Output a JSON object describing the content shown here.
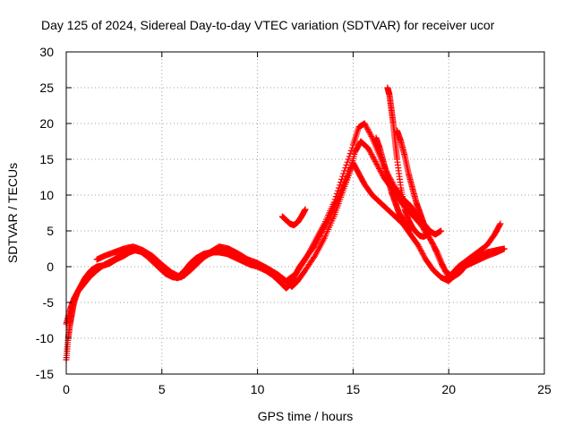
{
  "chart_data": {
    "type": "scatter",
    "title": "Day 125 of 2024, Sidereal Day-to-day VTEC variation (SDTVAR) for receiver ucor",
    "xlabel": "GPS time / hours",
    "ylabel": "SDTVAR / TECUs",
    "xlim": [
      0,
      25
    ],
    "ylim": [
      -15,
      30
    ],
    "x_ticks": [
      0,
      5,
      10,
      15,
      20,
      25
    ],
    "y_ticks": [
      -15,
      -10,
      -5,
      0,
      5,
      10,
      15,
      20,
      25,
      30
    ],
    "grid": true,
    "marker": "+",
    "color": "#ff0000",
    "series": [
      {
        "name": "trace-1",
        "x": [
          0.0,
          0.1,
          0.2,
          0.3,
          0.4,
          0.6,
          0.8,
          1.0,
          1.3,
          1.6,
          2.0,
          2.3,
          2.6,
          3.0,
          3.3,
          3.6,
          4.0,
          4.4,
          4.8,
          5.2,
          5.6,
          5.9,
          6.2,
          6.5,
          6.8,
          7.2,
          7.6,
          8.0,
          8.4,
          8.8,
          9.2,
          9.6,
          10.0,
          10.4,
          10.8,
          11.2,
          11.5,
          11.7,
          11.9,
          12.2,
          12.6,
          13.0,
          13.4,
          13.8,
          14.2,
          14.6,
          15.0,
          15.3,
          15.6,
          16.0,
          16.4,
          16.8,
          17.2,
          17.6,
          18.0,
          18.4,
          18.8,
          19.2,
          19.6,
          20.0,
          20.4,
          20.8,
          21.2,
          21.6,
          22.0,
          22.5,
          22.9
        ],
        "y": [
          -13.0,
          -10.0,
          -8.0,
          -6.5,
          -5.0,
          -3.5,
          -2.5,
          -1.5,
          -0.5,
          0.0,
          0.2,
          0.5,
          1.0,
          1.5,
          2.0,
          2.3,
          2.0,
          1.2,
          0.0,
          -1.0,
          -1.5,
          -1.3,
          -0.5,
          0.5,
          1.2,
          1.8,
          2.0,
          2.0,
          1.8,
          1.3,
          0.8,
          0.3,
          0.0,
          -0.5,
          -1.2,
          -2.2,
          -3.0,
          -2.5,
          -1.5,
          0.0,
          1.5,
          3.0,
          5.0,
          7.0,
          9.5,
          12.0,
          14.5,
          13.0,
          11.5,
          10.0,
          9.0,
          8.0,
          7.0,
          6.0,
          4.5,
          3.0,
          1.0,
          -0.5,
          -1.5,
          -2.0,
          -1.0,
          0.0,
          0.5,
          1.0,
          1.5,
          2.0,
          2.5
        ]
      },
      {
        "name": "trace-2",
        "x": [
          0.0,
          0.2,
          0.4,
          0.6,
          0.9,
          1.2,
          1.6,
          2.0,
          2.5,
          3.0,
          3.4,
          3.8,
          4.2,
          4.6,
          5.0,
          5.4,
          5.8,
          6.2,
          6.6,
          7.0,
          7.5,
          8.0,
          8.5,
          9.0,
          9.5,
          10.0,
          10.5,
          11.0,
          11.5,
          11.8,
          12.1,
          12.5,
          13.0,
          13.5,
          14.0,
          14.4,
          14.8,
          15.1,
          15.4,
          15.8,
          16.2,
          16.6,
          17.0,
          17.5,
          18.0,
          18.5,
          19.0,
          19.4,
          19.8,
          20.2,
          20.6,
          21.0,
          21.5,
          22.0,
          22.5,
          22.9
        ],
        "y": [
          -8.0,
          -6.0,
          -4.5,
          -3.5,
          -2.5,
          -1.5,
          -0.5,
          0.3,
          1.0,
          2.0,
          2.5,
          2.3,
          1.5,
          0.5,
          -0.5,
          -1.2,
          -1.6,
          -1.2,
          0.0,
          1.0,
          1.8,
          2.3,
          2.0,
          1.4,
          0.8,
          0.2,
          -0.3,
          -1.0,
          -2.0,
          -2.8,
          -2.0,
          -0.5,
          1.5,
          4.0,
          7.0,
          10.0,
          13.0,
          16.0,
          17.5,
          16.5,
          14.5,
          12.5,
          11.0,
          9.0,
          7.5,
          6.0,
          4.0,
          2.0,
          -0.5,
          -1.5,
          -0.8,
          0.5,
          1.5,
          2.0,
          2.3,
          2.5
        ]
      },
      {
        "name": "trace-3",
        "x": [
          1.6,
          2.0,
          2.5,
          3.0,
          3.5,
          4.0,
          4.5,
          5.0,
          5.5,
          6.0,
          6.5,
          7.0,
          7.5,
          8.0,
          8.5,
          9.0,
          9.5,
          10.0,
          10.5,
          11.0,
          11.5,
          12.0,
          12.5,
          13.0,
          13.5,
          14.0,
          14.5,
          15.0,
          15.3,
          15.6,
          16.0,
          16.4,
          16.8,
          17.2,
          17.6,
          18.0,
          18.4,
          18.8,
          19.2,
          19.6,
          20.0,
          20.5,
          21.0,
          21.5,
          22.0,
          22.4,
          22.7
        ],
        "y": [
          1.0,
          1.5,
          2.0,
          2.5,
          2.8,
          2.3,
          1.5,
          0.3,
          -0.8,
          -1.5,
          -0.5,
          0.8,
          2.0,
          2.8,
          2.5,
          1.8,
          1.0,
          0.5,
          -0.2,
          -1.0,
          -2.0,
          -1.0,
          1.0,
          3.5,
          6.0,
          9.0,
          13.0,
          17.0,
          19.5,
          20.0,
          18.0,
          15.5,
          13.0,
          11.0,
          9.5,
          8.5,
          7.0,
          5.0,
          3.0,
          0.5,
          -1.5,
          0.0,
          1.0,
          2.0,
          3.0,
          4.5,
          6.0
        ]
      },
      {
        "name": "trace-4",
        "x": [
          11.3,
          11.5,
          11.7,
          11.9,
          12.1,
          12.3,
          12.5
        ],
        "y": [
          7.0,
          6.5,
          6.0,
          5.8,
          6.2,
          7.0,
          8.0
        ]
      },
      {
        "name": "trace-5",
        "x": [
          16.8,
          16.9,
          17.0,
          17.1,
          17.2,
          17.3,
          17.5,
          17.7,
          17.9,
          18.1,
          18.3,
          18.5,
          18.7,
          18.9
        ],
        "y": [
          25.0,
          24.0,
          22.0,
          20.0,
          17.5,
          15.0,
          11.0,
          8.0,
          6.5,
          5.5,
          4.8,
          4.3,
          4.2,
          4.5
        ]
      },
      {
        "name": "trace-6",
        "x": [
          16.2,
          16.4,
          16.6,
          16.8,
          17.0,
          17.2,
          17.4,
          17.6,
          17.8,
          18.0
        ],
        "y": [
          18.0,
          16.5,
          14.5,
          12.5,
          10.5,
          9.0,
          7.5,
          6.5,
          5.5,
          5.0
        ]
      },
      {
        "name": "trace-7",
        "x": [
          17.3,
          17.5,
          17.7,
          17.9,
          18.1,
          18.3,
          18.5,
          18.7,
          19.0,
          19.3,
          19.6
        ],
        "y": [
          19.0,
          17.5,
          15.5,
          13.0,
          11.0,
          9.0,
          7.5,
          6.0,
          5.0,
          4.5,
          5.0
        ]
      }
    ]
  }
}
